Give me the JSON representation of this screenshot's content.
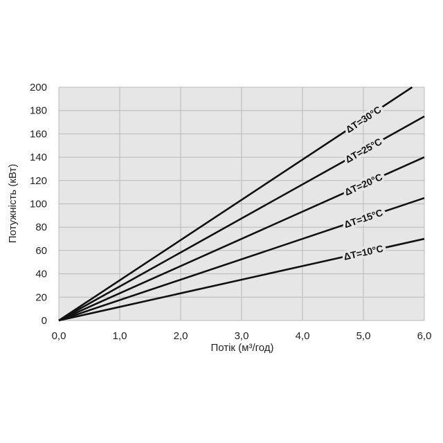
{
  "chart_data": {
    "type": "line",
    "xlabel": "Потік (м³/год)",
    "ylabel": "Потужність (кВт)",
    "xlim": [
      0,
      6
    ],
    "ylim": [
      0,
      200
    ],
    "x_ticks": [
      "0,0",
      "1,0",
      "2,0",
      "3,0",
      "4,0",
      "5,0",
      "6,0"
    ],
    "y_ticks": [
      "0",
      "20",
      "40",
      "60",
      "80",
      "100",
      "120",
      "140",
      "160",
      "180",
      "200"
    ],
    "grid": true,
    "series": [
      {
        "name": "ΔT=10°C",
        "x": [
          0,
          6
        ],
        "y": [
          0,
          70
        ]
      },
      {
        "name": "ΔT=15°C",
        "x": [
          0,
          6
        ],
        "y": [
          0,
          105
        ]
      },
      {
        "name": "ΔT=20°C",
        "x": [
          0,
          6
        ],
        "y": [
          0,
          140
        ]
      },
      {
        "name": "ΔT=25°C",
        "x": [
          0,
          6
        ],
        "y": [
          0,
          175
        ]
      },
      {
        "name": "ΔT=30°C",
        "x": [
          0,
          5.8
        ],
        "y": [
          0,
          200
        ]
      }
    ]
  }
}
